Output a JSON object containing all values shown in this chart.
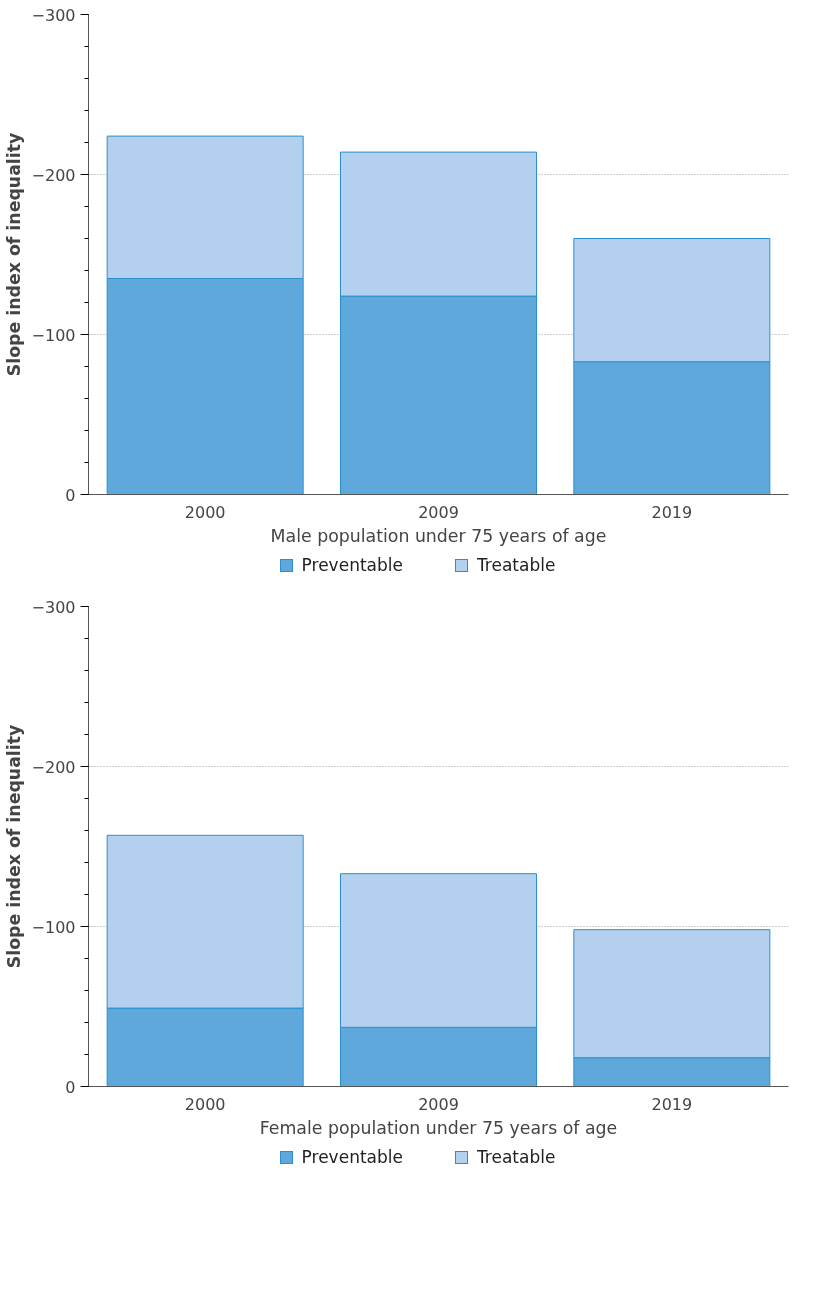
{
  "chart_data": [
    {
      "type": "bar",
      "stacked": true,
      "xlabel": "Male population under 75 years of age",
      "ylabel": "Slope index of inequality",
      "categories": [
        "2000",
        "2009",
        "2019"
      ],
      "series": [
        {
          "name": "Preventable",
          "color": "#5fa8dc",
          "values": [
            -135,
            -124,
            -83
          ]
        },
        {
          "name": "Treatable",
          "color": "#b3d1ee",
          "values": [
            -89,
            -90,
            -77
          ]
        }
      ],
      "ylim": [
        0,
        -300
      ],
      "yticks": [
        0,
        {
          "value": -100,
          "label": "−100"
        },
        {
          "value": -200,
          "label": "−200"
        },
        {
          "value": -300,
          "label": "−300"
        }
      ],
      "grid": "y",
      "legend": "bottom"
    },
    {
      "type": "bar",
      "stacked": true,
      "xlabel": "Female population under 75 years of age",
      "ylabel": "Slope index of inequality",
      "categories": [
        "2000",
        "2009",
        "2019"
      ],
      "series": [
        {
          "name": "Preventable",
          "color": "#5fa8dc",
          "values": [
            -49,
            -37,
            -18
          ]
        },
        {
          "name": "Treatable",
          "color": "#b3d1ee",
          "values": [
            -108,
            -96,
            -80
          ]
        }
      ],
      "ylim": [
        0,
        -300
      ],
      "yticks": [
        0,
        {
          "value": -100,
          "label": "−100"
        },
        {
          "value": -200,
          "label": "−200"
        },
        {
          "value": -300,
          "label": "−300"
        }
      ],
      "grid": "y",
      "legend": "bottom"
    }
  ]
}
